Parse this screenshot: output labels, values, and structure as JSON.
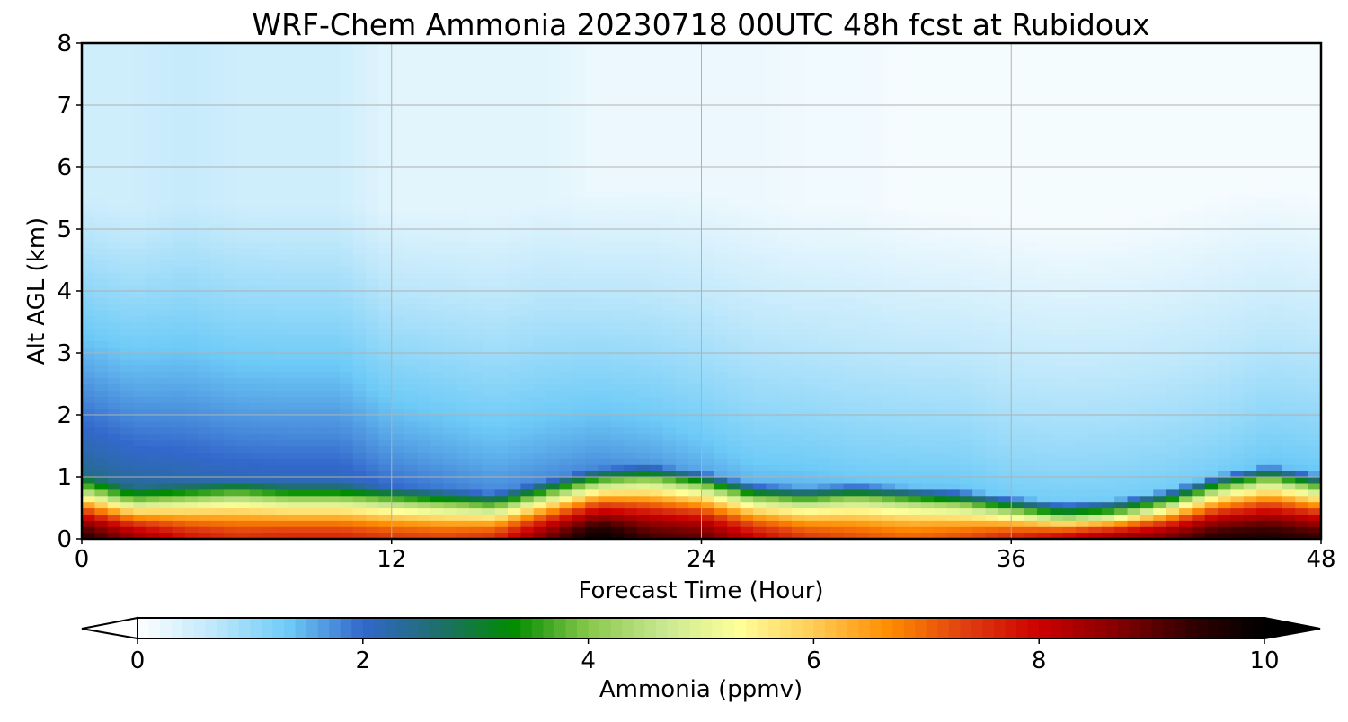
{
  "chart_data": {
    "type": "heatmap",
    "title": "WRF-Chem Ammonia  20230718 00UTC 48h fcst at Rubidoux",
    "xlabel": "Forecast Time (Hour)",
    "ylabel": "Alt AGL (km)",
    "xlim": [
      0,
      48
    ],
    "ylim": [
      0,
      8
    ],
    "xticks": [
      0,
      12,
      24,
      36,
      48
    ],
    "yticks": [
      0,
      1,
      2,
      3,
      4,
      5,
      6,
      7,
      8
    ],
    "grid": true,
    "colorbar": {
      "label": "Ammonia  (ppmv)",
      "range": [
        0,
        10
      ],
      "ticks": [
        0,
        2,
        4,
        6,
        8,
        10
      ],
      "extend": "both",
      "orientation": "horizontal",
      "colors": [
        "#ffffff",
        "#bfe8fb",
        "#6ecbf7",
        "#3368cc",
        "#1e6e6e",
        "#008c00",
        "#88c84a",
        "#c8e890",
        "#ffff99",
        "#ffcc55",
        "#ff8c00",
        "#e04010",
        "#cc0000",
        "#880000",
        "#330000",
        "#000000"
      ]
    },
    "x": [
      0,
      2,
      4,
      6,
      8,
      10,
      12,
      14,
      16,
      18,
      20,
      22,
      24,
      26,
      28,
      30,
      32,
      34,
      36,
      38,
      40,
      42,
      44,
      46,
      48
    ],
    "y": [
      0,
      0.1,
      0.2,
      0.3,
      0.4,
      0.5,
      0.6,
      0.7,
      0.8,
      0.9,
      1.0,
      1.2,
      1.5,
      1.8,
      2.2,
      2.6,
      3.0,
      3.5,
      4.0,
      4.5,
      5.0,
      5.5,
      6.0,
      6.5,
      7.0,
      7.5,
      8.0
    ],
    "boundary_layer_top_km": [
      0.8,
      0.6,
      0.65,
      0.7,
      0.65,
      0.65,
      0.6,
      0.55,
      0.5,
      0.7,
      0.9,
      0.95,
      0.85,
      0.65,
      0.6,
      0.65,
      0.6,
      0.55,
      0.45,
      0.35,
      0.4,
      0.55,
      0.8,
      0.95,
      0.8
    ],
    "surface_ppmv": [
      9.5,
      8.5,
      7.8,
      7.5,
      7.6,
      7.6,
      7.4,
      7.3,
      7.5,
      8.8,
      10.0,
      9.2,
      9.0,
      8.0,
      7.4,
      7.2,
      7.0,
      7.2,
      7.6,
      8.0,
      8.4,
      8.8,
      9.5,
      9.6,
      9.3
    ],
    "lower_troposphere_ppmv": [
      2.5,
      2.4,
      2.3,
      2.2,
      2.2,
      2.2,
      2.0,
      1.9,
      1.8,
      1.8,
      1.8,
      1.7,
      1.6,
      1.5,
      1.5,
      1.4,
      1.4,
      1.4,
      1.3,
      1.3,
      1.3,
      1.3,
      1.3,
      1.4,
      1.4
    ],
    "upper_level_ppmv": [
      0.5,
      0.5,
      0.6,
      0.5,
      0.5,
      0.5,
      0.3,
      0.3,
      0.3,
      0.3,
      0.2,
      0.2,
      0.2,
      0.2,
      0.15,
      0.15,
      0.1,
      0.1,
      0.1,
      0.1,
      0.1,
      0.1,
      0.1,
      0.1,
      0.1
    ]
  }
}
